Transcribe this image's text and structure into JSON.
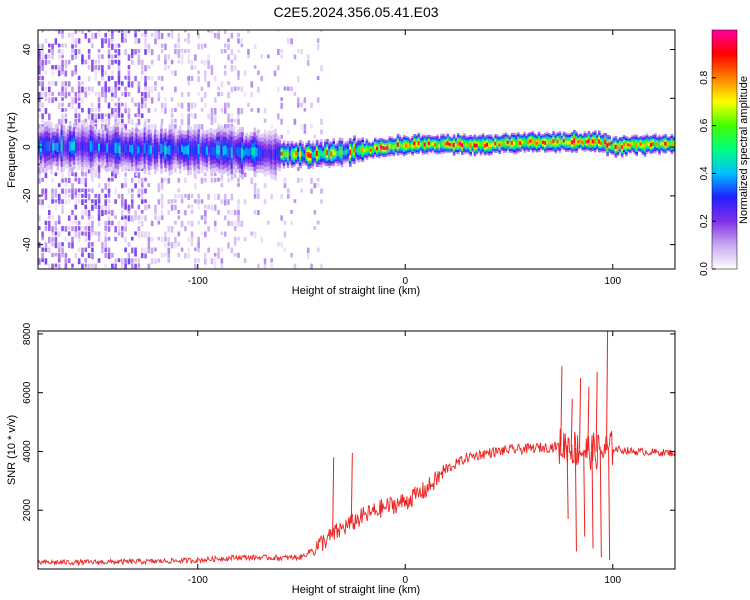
{
  "figure": {
    "title": "C2E5.2024.356.05.41.E03"
  },
  "chart_data": [
    {
      "type": "heatmap",
      "xlabel": "Height of straight line (km)",
      "ylabel": "Frequency (Hz)",
      "xlim": [
        -177,
        130
      ],
      "ylim": [
        -50,
        48
      ],
      "xticks": [
        -100,
        0,
        100
      ],
      "yticks": [
        -40,
        -20,
        0,
        20,
        40
      ],
      "colorbar": {
        "label": "Normalized spectral amplitude",
        "range": [
          0,
          1
        ],
        "ticks": [
          0.0,
          0.2,
          0.4,
          0.6,
          0.8
        ],
        "ticklabels": [
          "0.0",
          "0.2",
          "0.4",
          "0.6",
          "0.8"
        ],
        "colormap": [
          "#ffffff",
          "#c8a8f0",
          "#8030e8",
          "#2020ff",
          "#00c0ff",
          "#00ff80",
          "#40ff00",
          "#ffff00",
          "#ff8000",
          "#ff0000",
          "#ff00a0"
        ]
      },
      "ridge_frequency": [
        {
          "x": -177,
          "y": 0
        },
        {
          "x": -150,
          "y": 0
        },
        {
          "x": -120,
          "y": -1
        },
        {
          "x": -100,
          "y": -1
        },
        {
          "x": -80,
          "y": -2
        },
        {
          "x": -60,
          "y": -3
        },
        {
          "x": -40,
          "y": -3
        },
        {
          "x": -20,
          "y": -1
        },
        {
          "x": 0,
          "y": 1
        },
        {
          "x": 20,
          "y": 1
        },
        {
          "x": 40,
          "y": 1
        },
        {
          "x": 60,
          "y": 2
        },
        {
          "x": 80,
          "y": 2
        },
        {
          "x": 95,
          "y": 2
        },
        {
          "x": 100,
          "y": 0
        },
        {
          "x": 110,
          "y": 1
        },
        {
          "x": 130,
          "y": 1
        }
      ]
    },
    {
      "type": "line",
      "xlabel": "Height of straight line (km)",
      "ylabel": "SNR (10 * v/v)",
      "xlim": [
        -177,
        130
      ],
      "ylim": [
        0,
        8100
      ],
      "xticks": [
        -100,
        0,
        100
      ],
      "yticks": [
        2000,
        4000,
        6000,
        8000
      ],
      "color": "#ee2222",
      "series": [
        {
          "x": [
            -177,
            -150,
            -120,
            -100,
            -80,
            -60,
            -50,
            -40,
            -30,
            -20,
            -10,
            0,
            10,
            20,
            30,
            40,
            50,
            60,
            70,
            78,
            85,
            90,
            95,
            100,
            110,
            130
          ],
          "y": [
            220,
            230,
            260,
            300,
            400,
            380,
            400,
            900,
            1400,
            1800,
            2100,
            2300,
            2700,
            3400,
            3800,
            3950,
            4050,
            4100,
            4150,
            4200,
            4050,
            4000,
            4000,
            4100,
            4000,
            3950
          ]
        }
      ],
      "spikes": [
        {
          "x": -35,
          "y": 3800
        },
        {
          "x": -26,
          "y": 3950
        },
        {
          "x": 75,
          "y": 6900
        },
        {
          "x": 80,
          "y": 5800
        },
        {
          "x": 84,
          "y": 6500
        },
        {
          "x": 88,
          "y": 6200
        },
        {
          "x": 92,
          "y": 6700
        },
        {
          "x": 97,
          "y": 8100
        }
      ],
      "dips": [
        {
          "x": 78,
          "y": 1700
        },
        {
          "x": 82,
          "y": 600
        },
        {
          "x": 86,
          "y": 1100
        },
        {
          "x": 90,
          "y": 700
        },
        {
          "x": 94,
          "y": 400
        },
        {
          "x": 98,
          "y": 300
        }
      ]
    }
  ]
}
